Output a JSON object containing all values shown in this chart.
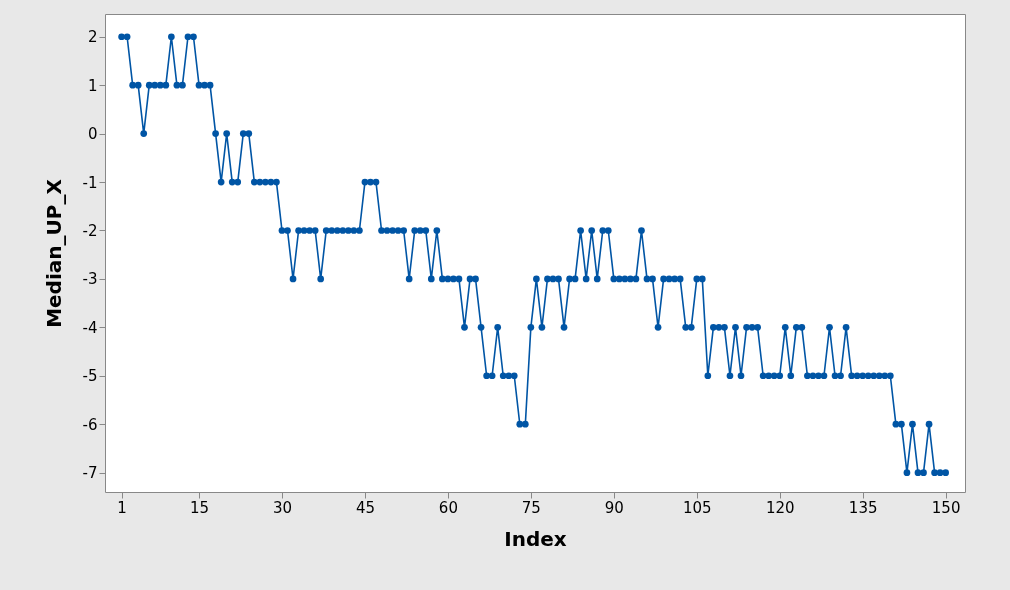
{
  "chart_data": {
    "type": "line",
    "xlabel": "Index",
    "ylabel": "Median_UP_X",
    "x": [
      1,
      2,
      3,
      4,
      5,
      6,
      7,
      8,
      9,
      10,
      11,
      12,
      13,
      14,
      15,
      16,
      17,
      18,
      19,
      20,
      21,
      22,
      23,
      24,
      25,
      26,
      27,
      28,
      29,
      30,
      31,
      32,
      33,
      34,
      35,
      36,
      37,
      38,
      39,
      40,
      41,
      42,
      43,
      44,
      45,
      46,
      47,
      48,
      49,
      50,
      51,
      52,
      53,
      54,
      55,
      56,
      57,
      58,
      59,
      60,
      61,
      62,
      63,
      64,
      65,
      66,
      67,
      68,
      69,
      70,
      71,
      72,
      73,
      74,
      75,
      76,
      77,
      78,
      79,
      80,
      81,
      82,
      83,
      84,
      85,
      86,
      87,
      88,
      89,
      90,
      91,
      92,
      93,
      94,
      95,
      96,
      97,
      98,
      99,
      100,
      101,
      102,
      103,
      104,
      105,
      106,
      107,
      108,
      109,
      110,
      111,
      112,
      113,
      114,
      115,
      116,
      117,
      118,
      119,
      120,
      121,
      122,
      123,
      124,
      125,
      126,
      127,
      128,
      129,
      130,
      131,
      132,
      133,
      134,
      135,
      136,
      137,
      138,
      139,
      140,
      141,
      142,
      143,
      144,
      145,
      146,
      147,
      148,
      149,
      150
    ],
    "series": [
      {
        "color": "#0055a5",
        "values": [
          2,
          2,
          1,
          1,
          0,
          1,
          1,
          1,
          1,
          2,
          1,
          1,
          2,
          2,
          1,
          1,
          1,
          0,
          -1,
          0,
          -1,
          -1,
          0,
          0,
          -1,
          -1,
          -1,
          -1,
          -1,
          -2,
          -2,
          -3,
          -2,
          -2,
          -2,
          -2,
          -3,
          -2,
          -2,
          -2,
          -2,
          -2,
          -2,
          -2,
          -1,
          -1,
          -1,
          -2,
          -2,
          -2,
          -2,
          -2,
          -3,
          -2,
          -2,
          -2,
          -3,
          -2,
          -3,
          -3,
          -3,
          -3,
          -4,
          -3,
          -3,
          -4,
          -5,
          -5,
          -4,
          -5,
          -5,
          -5,
          -6,
          -6,
          -4,
          -3,
          -4,
          -3,
          -3,
          -3,
          -4,
          -3,
          -3,
          -2,
          -3,
          -2,
          -3,
          -2,
          -2,
          -3,
          -3,
          -3,
          -3,
          -3,
          -2,
          -3,
          -3,
          -4,
          -3,
          -3,
          -3,
          -3,
          -4,
          -4,
          -3,
          -3,
          -5,
          -4,
          -4,
          -4,
          -5,
          -4,
          -5,
          -4,
          -4,
          -4,
          -5,
          -5,
          -5,
          -5,
          -4,
          -5,
          -4,
          -4,
          -5,
          -5,
          -5,
          -5,
          -4,
          -5,
          -5,
          -4,
          -5,
          -5,
          -5,
          -5,
          -5,
          -5,
          -5,
          -5,
          -6,
          -6,
          -7,
          -6,
          -7,
          -7,
          -6,
          -7,
          -7,
          -7
        ]
      }
    ],
    "xlim": [
      -2,
      153.5
    ],
    "xticks": [
      1,
      15,
      30,
      45,
      60,
      75,
      90,
      105,
      120,
      135,
      150
    ],
    "ylim": [
      -7.4,
      2.47
    ],
    "yticks": [
      2,
      1,
      0,
      -1,
      -2,
      -3,
      -4,
      -5,
      -6,
      -7
    ],
    "marker": "circle",
    "line_style": "solid",
    "grid": false
  }
}
